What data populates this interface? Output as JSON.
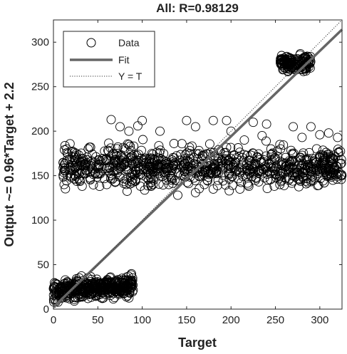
{
  "chart_data": {
    "type": "scatter",
    "title": "All: R=0.98129",
    "xlabel": "Target",
    "ylabel": "Output ~= 0.96*Target + 2.2",
    "xlim": [
      0,
      325
    ],
    "ylim": [
      0,
      325
    ],
    "xticks": [
      "0",
      "50",
      "100",
      "150",
      "200",
      "250",
      "300"
    ],
    "yticks": [
      "0",
      "50",
      "100",
      "150",
      "200",
      "250",
      "300"
    ],
    "grid": false,
    "legend_position": "top-left",
    "legend": [
      "Data",
      "Fit",
      "Y = T"
    ],
    "fit": {
      "slope": 0.96,
      "intercept": 2.2
    },
    "series": [
      {
        "name": "Data",
        "marker": "open-circle",
        "clusters": [
          {
            "x_range": [
              0,
              90
            ],
            "y_center": 20,
            "y_spread": 8,
            "y_slope": 0.08,
            "count": 420
          },
          {
            "x_range": [
              10,
              325
            ],
            "y_center": 160,
            "y_spread": 15,
            "count": 850
          },
          {
            "x_range": [
              255,
              290
            ],
            "y_center": 277,
            "y_spread": 6,
            "count": 160
          }
        ],
        "points": [
          [
            65,
            213
          ],
          [
            75,
            205
          ],
          [
            85,
            200
          ],
          [
            100,
            212
          ],
          [
            95,
            206
          ],
          [
            320,
            193
          ],
          [
            310,
            198
          ],
          [
            280,
            193
          ],
          [
            15,
            180
          ],
          [
            20,
            148
          ],
          [
            12,
            140
          ],
          [
            52,
            138
          ],
          [
            60,
            140
          ],
          [
            110,
            138
          ],
          [
            30,
            165
          ],
          [
            150,
            212
          ],
          [
            180,
            212
          ],
          [
            195,
            212
          ],
          [
            225,
            210
          ],
          [
            240,
            208
          ],
          [
            215,
            190
          ],
          [
            255,
            185
          ],
          [
            270,
            205
          ],
          [
            290,
            205
          ],
          [
            300,
            196
          ],
          [
            255,
            140
          ],
          [
            265,
            145
          ],
          [
            210,
            135
          ],
          [
            180,
            135
          ],
          [
            130,
            140
          ],
          [
            170,
            140
          ],
          [
            220,
            138
          ],
          [
            85,
            185
          ],
          [
            120,
            200
          ],
          [
            160,
            205
          ],
          [
            200,
            200
          ],
          [
            235,
            195
          ],
          [
            250,
            170
          ],
          [
            65,
            172
          ],
          [
            75,
            168
          ],
          [
            300,
            170
          ],
          [
            305,
            172
          ],
          [
            198,
            133
          ],
          [
            140,
            128
          ],
          [
            160,
            131
          ],
          [
            255,
            166
          ],
          [
            245,
            180
          ],
          [
            225,
            175
          ]
        ]
      }
    ]
  },
  "legend_labels": {
    "data": "Data",
    "fit": "Fit",
    "ident": "Y = T"
  }
}
